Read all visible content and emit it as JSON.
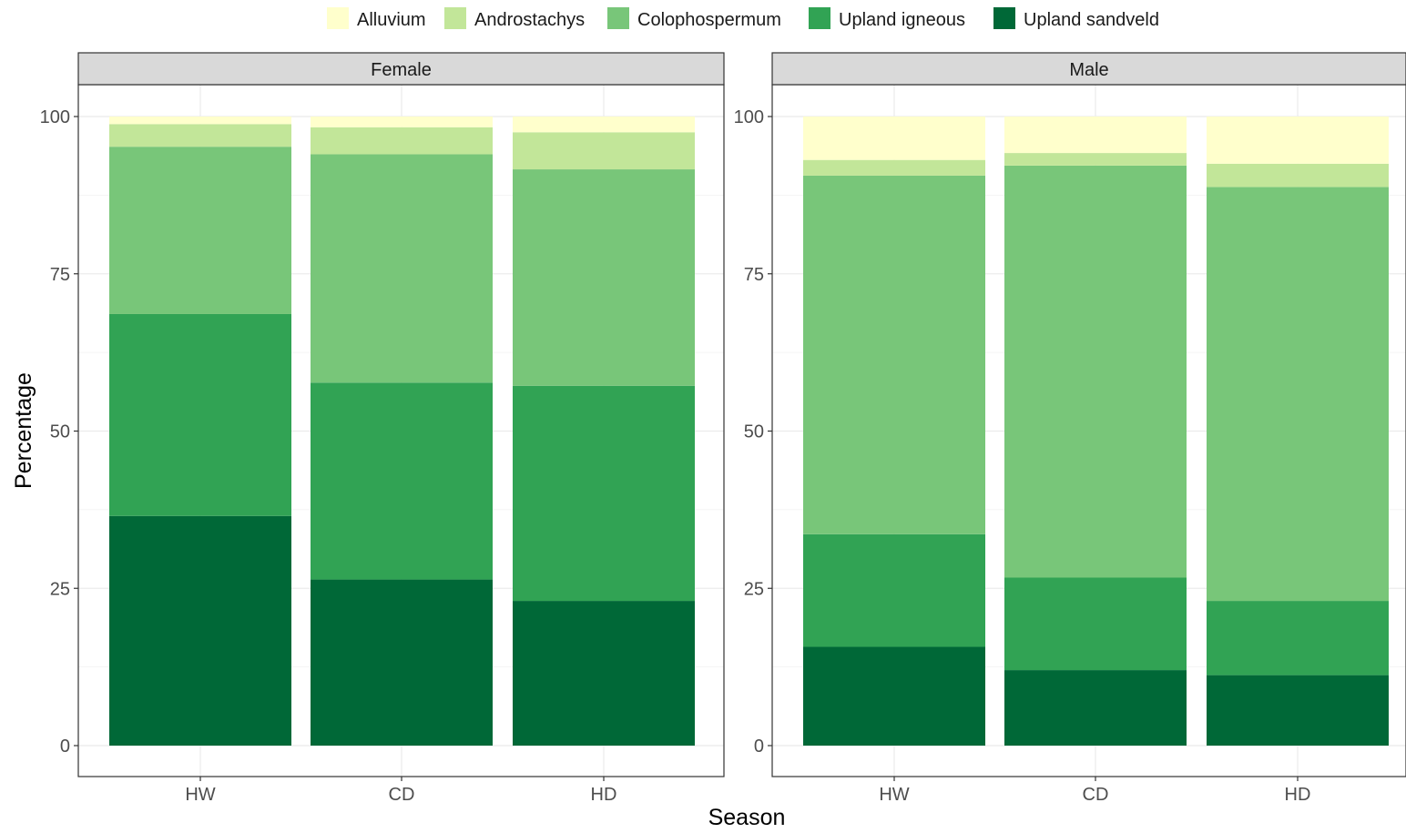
{
  "chart_data": {
    "type": "bar",
    "stacked": true,
    "xlabel": "Season",
    "ylabel": "Percentage",
    "ylim": [
      0,
      105
    ],
    "yticks": [
      0,
      25,
      50,
      75,
      100
    ],
    "grid": true,
    "legend_position": "top",
    "categories": [
      "HW",
      "CD",
      "HD"
    ],
    "series_names": [
      "Alluvium",
      "Androstachys",
      "Colophospermum",
      "Upland igneous",
      "Upland sandveld"
    ],
    "colors": {
      "Alluvium": "#ffffcc",
      "Androstachys": "#c2e699",
      "Colophospermum": "#78c679",
      "Upland igneous": "#31a354",
      "Upland sandveld": "#006837"
    },
    "panels": [
      {
        "title": "Female",
        "series": [
          {
            "name": "Upland sandveld",
            "values": [
              36.5,
              26.4,
              23.0
            ]
          },
          {
            "name": "Upland igneous",
            "values": [
              32.1,
              31.3,
              34.2
            ]
          },
          {
            "name": "Colophospermum",
            "values": [
              26.6,
              36.3,
              34.4
            ]
          },
          {
            "name": "Androstachys",
            "values": [
              3.6,
              4.3,
              5.9
            ]
          },
          {
            "name": "Alluvium",
            "values": [
              1.2,
              1.7,
              2.5
            ]
          }
        ]
      },
      {
        "title": "Male",
        "series": [
          {
            "name": "Upland sandveld",
            "values": [
              15.7,
              12.0,
              11.2
            ]
          },
          {
            "name": "Upland igneous",
            "values": [
              17.9,
              14.7,
              11.8
            ]
          },
          {
            "name": "Colophospermum",
            "values": [
              57.0,
              65.5,
              65.8
            ]
          },
          {
            "name": "Androstachys",
            "values": [
              2.5,
              2.0,
              3.7
            ]
          },
          {
            "name": "Alluvium",
            "values": [
              6.9,
              5.8,
              7.5
            ]
          }
        ]
      }
    ]
  }
}
